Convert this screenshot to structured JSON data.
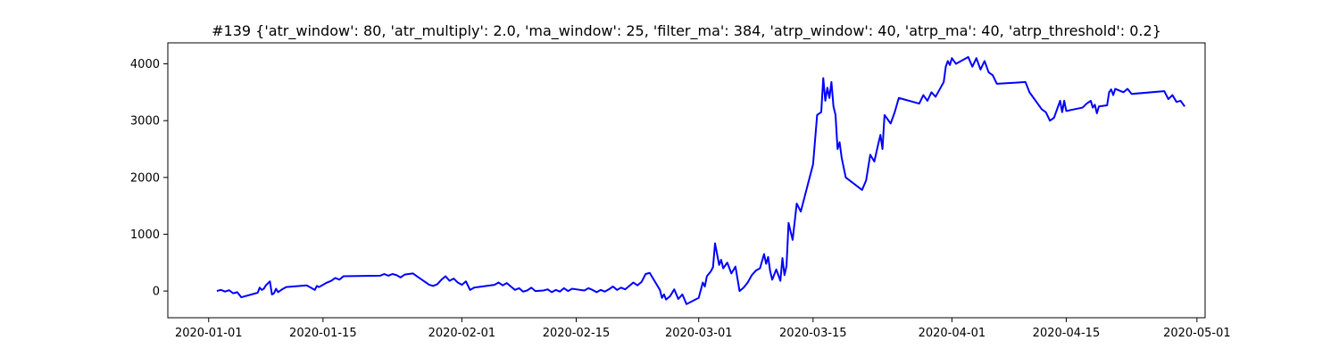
{
  "chart_data": {
    "type": "line",
    "title": "#139 {'atr_window': 80, 'atr_multiply': 2.0, 'ma_window': 25, 'filter_ma': 384, 'atrp_window': 40, 'atrp_ma': 40, 'atrp_threshold': 0.2}",
    "xlabel": "",
    "ylabel": "",
    "x_axis_type": "date",
    "xlim": [
      "2019-12-27",
      "2020-05-02"
    ],
    "ylim": [
      -470,
      4370
    ],
    "grid": false,
    "legend": "none",
    "x_ticks": [
      "2020-01-01",
      "2020-01-15",
      "2020-02-01",
      "2020-02-15",
      "2020-03-01",
      "2020-03-15",
      "2020-04-01",
      "2020-04-15",
      "2020-05-01"
    ],
    "y_ticks": [
      0,
      1000,
      2000,
      3000,
      4000
    ],
    "series": [
      {
        "color": "#0000ff",
        "points": [
          [
            "2020-01-02",
            0
          ],
          [
            "2020-01-02T12:00",
            20
          ],
          [
            "2020-01-03",
            -10
          ],
          [
            "2020-01-03T12:00",
            15
          ],
          [
            "2020-01-04",
            -40
          ],
          [
            "2020-01-04T12:00",
            -20
          ],
          [
            "2020-01-05",
            -110
          ],
          [
            "2020-01-07",
            -30
          ],
          [
            "2020-01-07T06:00",
            60
          ],
          [
            "2020-01-07T12:00",
            20
          ],
          [
            "2020-01-07T18:00",
            40
          ],
          [
            "2020-01-08",
            100
          ],
          [
            "2020-01-08T12:00",
            170
          ],
          [
            "2020-01-08T18:00",
            -60
          ],
          [
            "2020-01-09",
            -40
          ],
          [
            "2020-01-09T06:00",
            40
          ],
          [
            "2020-01-09T12:00",
            -20
          ],
          [
            "2020-01-10",
            30
          ],
          [
            "2020-01-10T12:00",
            70
          ],
          [
            "2020-01-13",
            100
          ],
          [
            "2020-01-13T12:00",
            60
          ],
          [
            "2020-01-14",
            20
          ],
          [
            "2020-01-14T06:00",
            90
          ],
          [
            "2020-01-14T12:00",
            70
          ],
          [
            "2020-01-15",
            110
          ],
          [
            "2020-01-15T12:00",
            150
          ],
          [
            "2020-01-16",
            180
          ],
          [
            "2020-01-16T12:00",
            230
          ],
          [
            "2020-01-17",
            200
          ],
          [
            "2020-01-17T12:00",
            260
          ],
          [
            "2020-01-22",
            270
          ],
          [
            "2020-01-22T12:00",
            300
          ],
          [
            "2020-01-23",
            270
          ],
          [
            "2020-01-23T12:00",
            300
          ],
          [
            "2020-01-24",
            280
          ],
          [
            "2020-01-24T12:00",
            240
          ],
          [
            "2020-01-25",
            290
          ],
          [
            "2020-01-26",
            310
          ],
          [
            "2020-01-26T12:00",
            260
          ],
          [
            "2020-01-28",
            110
          ],
          [
            "2020-01-28T12:00",
            90
          ],
          [
            "2020-01-29",
            120
          ],
          [
            "2020-01-29T12:00",
            200
          ],
          [
            "2020-01-30",
            260
          ],
          [
            "2020-01-30T12:00",
            180
          ],
          [
            "2020-01-31",
            220
          ],
          [
            "2020-01-31T12:00",
            150
          ],
          [
            "2020-02-01",
            110
          ],
          [
            "2020-02-01T12:00",
            170
          ],
          [
            "2020-02-02",
            20
          ],
          [
            "2020-02-02T12:00",
            60
          ],
          [
            "2020-02-05",
            110
          ],
          [
            "2020-02-05T12:00",
            150
          ],
          [
            "2020-02-06",
            100
          ],
          [
            "2020-02-06T12:00",
            140
          ],
          [
            "2020-02-07",
            80
          ],
          [
            "2020-02-07T12:00",
            20
          ],
          [
            "2020-02-08",
            50
          ],
          [
            "2020-02-08T12:00",
            -10
          ],
          [
            "2020-02-09",
            10
          ],
          [
            "2020-02-09T12:00",
            60
          ],
          [
            "2020-02-10",
            0
          ],
          [
            "2020-02-11",
            10
          ],
          [
            "2020-02-11T12:00",
            30
          ],
          [
            "2020-02-12",
            -20
          ],
          [
            "2020-02-12T12:00",
            20
          ],
          [
            "2020-02-13",
            -10
          ],
          [
            "2020-02-13T12:00",
            50
          ],
          [
            "2020-02-14",
            0
          ],
          [
            "2020-02-14T12:00",
            40
          ],
          [
            "2020-02-15",
            30
          ],
          [
            "2020-02-16",
            10
          ],
          [
            "2020-02-16T12:00",
            50
          ],
          [
            "2020-02-17",
            20
          ],
          [
            "2020-02-17T12:00",
            -20
          ],
          [
            "2020-02-18",
            20
          ],
          [
            "2020-02-18T12:00",
            -10
          ],
          [
            "2020-02-19",
            30
          ],
          [
            "2020-02-19T12:00",
            80
          ],
          [
            "2020-02-20",
            20
          ],
          [
            "2020-02-20T12:00",
            60
          ],
          [
            "2020-02-21",
            30
          ],
          [
            "2020-02-21T12:00",
            90
          ],
          [
            "2020-02-22",
            150
          ],
          [
            "2020-02-22T12:00",
            100
          ],
          [
            "2020-02-23",
            160
          ],
          [
            "2020-02-23T12:00",
            300
          ],
          [
            "2020-02-24",
            320
          ],
          [
            "2020-02-24T12:00",
            200
          ],
          [
            "2020-02-25",
            80
          ],
          [
            "2020-02-25T06:00",
            20
          ],
          [
            "2020-02-25T12:00",
            -120
          ],
          [
            "2020-02-25T18:00",
            -60
          ],
          [
            "2020-02-26",
            -150
          ],
          [
            "2020-02-26T12:00",
            -90
          ],
          [
            "2020-02-27",
            30
          ],
          [
            "2020-02-27T12:00",
            -140
          ],
          [
            "2020-02-28",
            -60
          ],
          [
            "2020-02-28T12:00",
            -230
          ],
          [
            "2020-03-01",
            -120
          ],
          [
            "2020-03-01T12:00",
            150
          ],
          [
            "2020-03-01T18:00",
            80
          ],
          [
            "2020-03-02",
            260
          ],
          [
            "2020-03-02T12:00",
            350
          ],
          [
            "2020-03-02T18:00",
            420
          ],
          [
            "2020-03-03",
            840
          ],
          [
            "2020-03-03T06:00",
            650
          ],
          [
            "2020-03-03T12:00",
            460
          ],
          [
            "2020-03-03T18:00",
            550
          ],
          [
            "2020-03-04",
            400
          ],
          [
            "2020-03-04T12:00",
            500
          ],
          [
            "2020-03-05",
            310
          ],
          [
            "2020-03-05T12:00",
            430
          ],
          [
            "2020-03-06",
            0
          ],
          [
            "2020-03-06T12:00",
            60
          ],
          [
            "2020-03-07",
            150
          ],
          [
            "2020-03-07T12:00",
            280
          ],
          [
            "2020-03-08",
            360
          ],
          [
            "2020-03-08T12:00",
            400
          ],
          [
            "2020-03-09",
            650
          ],
          [
            "2020-03-09T06:00",
            480
          ],
          [
            "2020-03-09T12:00",
            600
          ],
          [
            "2020-03-09T18:00",
            350
          ],
          [
            "2020-03-10",
            200
          ],
          [
            "2020-03-10T12:00",
            380
          ],
          [
            "2020-03-11",
            180
          ],
          [
            "2020-03-11T06:00",
            580
          ],
          [
            "2020-03-11T12:00",
            280
          ],
          [
            "2020-03-11T18:00",
            440
          ],
          [
            "2020-03-12",
            1200
          ],
          [
            "2020-03-12T12:00",
            900
          ],
          [
            "2020-03-13",
            1540
          ],
          [
            "2020-03-13T12:00",
            1400
          ],
          [
            "2020-03-15",
            2230
          ],
          [
            "2020-03-15T12:00",
            3100
          ],
          [
            "2020-03-16",
            3150
          ],
          [
            "2020-03-16T06:00",
            3750
          ],
          [
            "2020-03-16T12:00",
            3350
          ],
          [
            "2020-03-16T18:00",
            3580
          ],
          [
            "2020-03-17",
            3400
          ],
          [
            "2020-03-17T06:00",
            3680
          ],
          [
            "2020-03-17T12:00",
            3250
          ],
          [
            "2020-03-17T18:00",
            3100
          ],
          [
            "2020-03-18",
            2500
          ],
          [
            "2020-03-18T06:00",
            2620
          ],
          [
            "2020-03-18T12:00",
            2350
          ],
          [
            "2020-03-19",
            2000
          ],
          [
            "2020-03-21",
            1780
          ],
          [
            "2020-03-21T12:00",
            1950
          ],
          [
            "2020-03-22",
            2400
          ],
          [
            "2020-03-22T12:00",
            2280
          ],
          [
            "2020-03-23",
            2600
          ],
          [
            "2020-03-23T06:00",
            2750
          ],
          [
            "2020-03-23T12:00",
            2500
          ],
          [
            "2020-03-23T18:00",
            3100
          ],
          [
            "2020-03-24",
            3050
          ],
          [
            "2020-03-24T12:00",
            2950
          ],
          [
            "2020-03-25",
            3150
          ],
          [
            "2020-03-25T12:00",
            3400
          ],
          [
            "2020-03-28",
            3300
          ],
          [
            "2020-03-28T12:00",
            3450
          ],
          [
            "2020-03-29",
            3350
          ],
          [
            "2020-03-29T12:00",
            3500
          ],
          [
            "2020-03-30",
            3420
          ],
          [
            "2020-03-30T12:00",
            3550
          ],
          [
            "2020-03-31",
            3680
          ],
          [
            "2020-03-31T06:00",
            3950
          ],
          [
            "2020-03-31T12:00",
            4050
          ],
          [
            "2020-03-31T18:00",
            3980
          ],
          [
            "2020-04-01",
            4100
          ],
          [
            "2020-04-01T12:00",
            4000
          ],
          [
            "2020-04-03",
            4120
          ],
          [
            "2020-04-03T12:00",
            3950
          ],
          [
            "2020-04-04",
            4100
          ],
          [
            "2020-04-04T12:00",
            3900
          ],
          [
            "2020-04-05",
            4050
          ],
          [
            "2020-04-05T12:00",
            3850
          ],
          [
            "2020-04-06",
            3800
          ],
          [
            "2020-04-06T12:00",
            3650
          ],
          [
            "2020-04-10",
            3680
          ],
          [
            "2020-04-10T12:00",
            3500
          ],
          [
            "2020-04-11",
            3400
          ],
          [
            "2020-04-11T12:00",
            3300
          ],
          [
            "2020-04-12",
            3200
          ],
          [
            "2020-04-12T12:00",
            3150
          ],
          [
            "2020-04-13",
            3000
          ],
          [
            "2020-04-13T12:00",
            3050
          ],
          [
            "2020-04-14",
            3250
          ],
          [
            "2020-04-14T06:00",
            3350
          ],
          [
            "2020-04-14T12:00",
            3150
          ],
          [
            "2020-04-14T18:00",
            3350
          ],
          [
            "2020-04-15",
            3170
          ],
          [
            "2020-04-16",
            3200
          ],
          [
            "2020-04-17",
            3230
          ],
          [
            "2020-04-17T12:00",
            3300
          ],
          [
            "2020-04-18",
            3350
          ],
          [
            "2020-04-18T06:00",
            3230
          ],
          [
            "2020-04-18T12:00",
            3280
          ],
          [
            "2020-04-18T18:00",
            3130
          ],
          [
            "2020-04-19",
            3250
          ],
          [
            "2020-04-20",
            3270
          ],
          [
            "2020-04-20T06:00",
            3500
          ],
          [
            "2020-04-20T12:00",
            3550
          ],
          [
            "2020-04-20T18:00",
            3450
          ],
          [
            "2020-04-21",
            3560
          ],
          [
            "2020-04-22",
            3500
          ],
          [
            "2020-04-22T12:00",
            3560
          ],
          [
            "2020-04-23",
            3470
          ],
          [
            "2020-04-27",
            3520
          ],
          [
            "2020-04-27T12:00",
            3380
          ],
          [
            "2020-04-28",
            3450
          ],
          [
            "2020-04-28T12:00",
            3330
          ],
          [
            "2020-04-29",
            3350
          ],
          [
            "2020-04-29T12:00",
            3250
          ]
        ]
      }
    ]
  }
}
